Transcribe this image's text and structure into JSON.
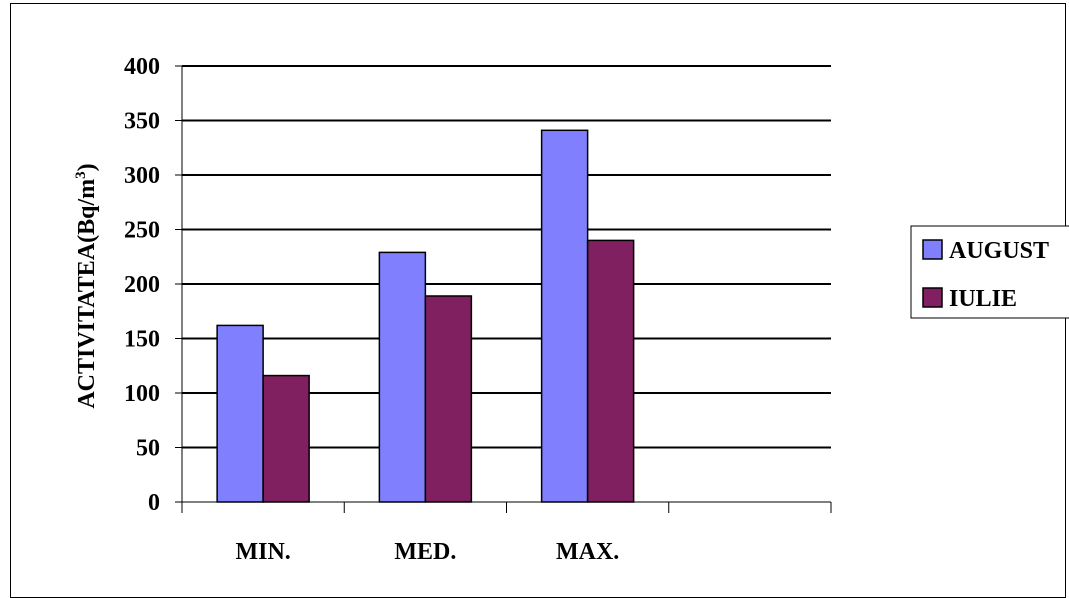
{
  "chart_data": {
    "type": "bar",
    "title": "",
    "xlabel": "",
    "ylabel": "ACTIVITATEA(Bq/m",
    "ylabel_superscript": "3",
    "ylabel_suffix": ")",
    "ylim": [
      0,
      400
    ],
    "yticks": [
      "0",
      "50",
      "100",
      "150",
      "200",
      "250",
      "300",
      "350",
      "400"
    ],
    "categories": [
      "MIN.",
      "MED.",
      "MAX.",
      ""
    ],
    "series": [
      {
        "name": "AUGUST",
        "color": "#8080ff",
        "values": [
          162,
          229,
          341,
          null
        ]
      },
      {
        "name": "IULIE",
        "color": "#802060",
        "values": [
          116,
          189,
          240,
          null
        ]
      }
    ],
    "grid": true,
    "legend_placement": "right"
  }
}
